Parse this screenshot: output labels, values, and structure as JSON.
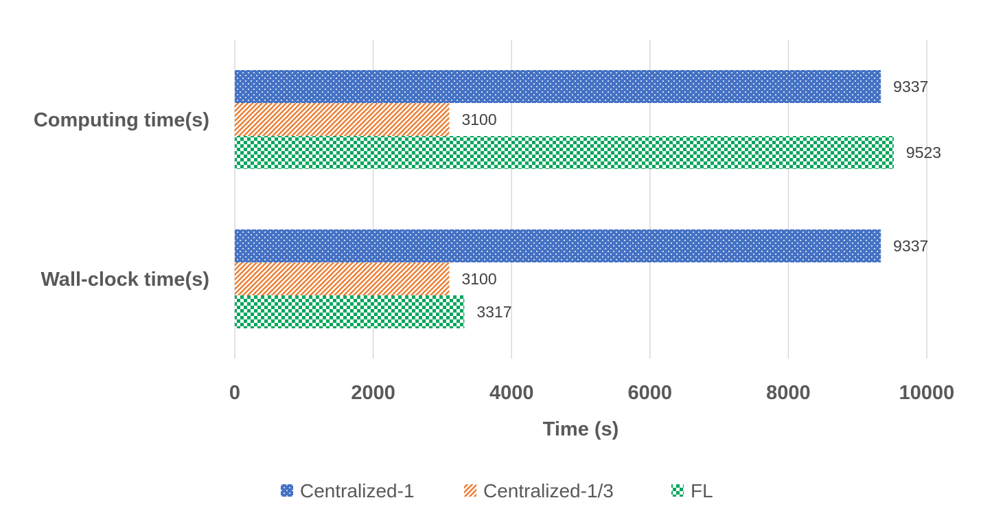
{
  "chart_data": {
    "type": "bar",
    "orientation": "horizontal",
    "categories": [
      "Computing time(s)",
      "Wall-clock time(s)"
    ],
    "series": [
      {
        "name": "Centralized-1",
        "values": [
          9337,
          9337
        ],
        "color": "#4472C4",
        "pattern": "dots"
      },
      {
        "name": "Centralized-1/3",
        "values": [
          3100,
          3100
        ],
        "color": "#ED7D31",
        "pattern": "diagonal-stripes"
      },
      {
        "name": "FL",
        "values": [
          9523,
          3317
        ],
        "color": "#00A65A",
        "pattern": "checkerboard"
      }
    ],
    "xlabel": "Time (s)",
    "xlim": [
      0,
      10000
    ],
    "xticks": [
      "0",
      "2000",
      "4000",
      "6000",
      "8000",
      "10000"
    ],
    "grid": true,
    "legend_position": "bottom",
    "data_labels": true
  }
}
